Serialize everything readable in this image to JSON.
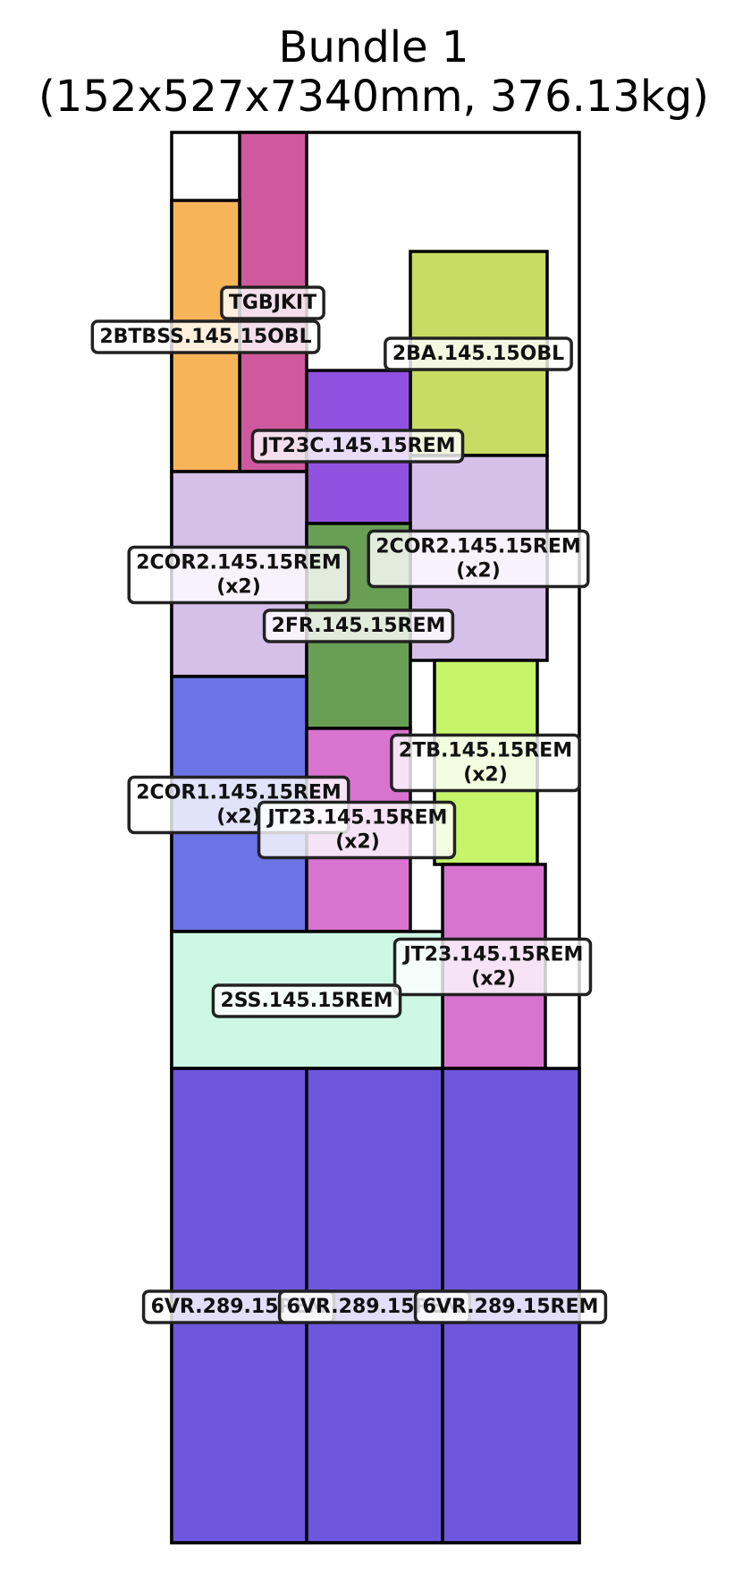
{
  "title": {
    "line1": "Bundle 1",
    "line2": "(152x527x7340mm, 376.13kg)"
  },
  "pieces": [
    {
      "id": "tgbjkit",
      "label": "TGBJKIT",
      "color": "#CE5A9D"
    },
    {
      "id": "2btbss",
      "label": "2BTBSS.145.15OBL",
      "color": "#F8B458"
    },
    {
      "id": "2ba",
      "label": "2BA.145.15OBL",
      "color": "#C8DB63"
    },
    {
      "id": "jt23c",
      "label": "JT23C.145.15REM",
      "color": "#9151E0"
    },
    {
      "id": "2cor2-left",
      "label": "2COR2.145.15REM\n(x2)",
      "color": "#D6BFE9"
    },
    {
      "id": "2cor2-right",
      "label": "2COR2.145.15REM\n(x2)",
      "color": "#D6BFE9"
    },
    {
      "id": "2fr",
      "label": "2FR.145.15REM",
      "color": "#689F54"
    },
    {
      "id": "2tb",
      "label": "2TB.145.15REM\n(x2)",
      "color": "#C6F56A"
    },
    {
      "id": "2cor1",
      "label": "2COR1.145.15REM\n(x2)",
      "color": "#6B74E4"
    },
    {
      "id": "jt23-mid",
      "label": "JT23.145.15REM\n(x2)",
      "color": "#D874CF"
    },
    {
      "id": "jt23-right",
      "label": "JT23.145.15REM\n(x2)",
      "color": "#D874CF"
    },
    {
      "id": "2ss",
      "label": "2SS.145.15REM",
      "color": "#CDF8E6"
    },
    {
      "id": "6vr-1",
      "label": "6VR.289.15REM",
      "color": "#6E57DE"
    },
    {
      "id": "6vr-2",
      "label": "6VR.289.15REM",
      "color": "#6E57DE"
    },
    {
      "id": "6vr-3",
      "label": "6VR.289.15REM",
      "color": "#6E57DE"
    }
  ]
}
